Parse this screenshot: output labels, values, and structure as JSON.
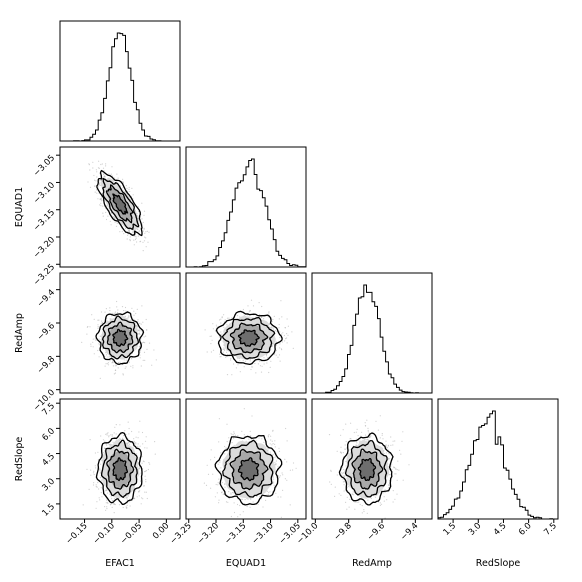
{
  "chart_data": {
    "type": "scatter",
    "title": "",
    "subtitle": "",
    "description_of_type": "corner plot",
    "parameters": [
      {
        "name": "EFAC1",
        "mean": -0.085,
        "sd": 0.02,
        "range": [
          -0.195,
          0.025
        ],
        "ticks": [
          -0.15,
          -0.1,
          -0.05,
          0.0
        ],
        "tick_labels": [
          "−0.15",
          "−0.10",
          "−0.05",
          "0.00"
        ]
      },
      {
        "name": "EQUAD1",
        "mean": -3.14,
        "sd": 0.028,
        "range": [
          -3.255,
          -3.035
        ],
        "ticks": [
          -3.25,
          -3.2,
          -3.15,
          -3.1,
          -3.05
        ],
        "tick_labels": [
          "−3.25",
          "−3.20",
          "−3.15",
          "−3.10",
          "−3.05"
        ]
      },
      {
        "name": "RedAmp",
        "mean": -9.69,
        "sd": 0.075,
        "range": [
          -10.02,
          -9.3
        ],
        "ticks": [
          -10.0,
          -9.8,
          -9.6,
          -9.4
        ],
        "tick_labels": [
          "−10.0",
          "−9.8",
          "−9.6",
          "−9.4"
        ]
      },
      {
        "name": "RedSlope",
        "mean": 3.55,
        "sd": 1.0,
        "range": [
          0.6,
          7.75
        ],
        "ticks": [
          1.5,
          3.0,
          4.5,
          6.0,
          7.5
        ],
        "tick_labels": [
          "1.5",
          "3.0",
          "4.5",
          "6.0",
          "7.5"
        ]
      }
    ],
    "correlations": [
      {
        "pair": [
          "EFAC1",
          "EQUAD1"
        ],
        "rho": -0.72
      },
      {
        "pair": [
          "EFAC1",
          "RedAmp"
        ],
        "rho": 0.0
      },
      {
        "pair": [
          "EFAC1",
          "RedSlope"
        ],
        "rho": 0.0
      },
      {
        "pair": [
          "EQUAD1",
          "RedAmp"
        ],
        "rho": 0.0
      },
      {
        "pair": [
          "EQUAD1",
          "RedSlope"
        ],
        "rho": 0.0
      },
      {
        "pair": [
          "RedAmp",
          "RedSlope"
        ],
        "rho": 0.0
      }
    ],
    "histogram_style": "step",
    "scatter_color": "#b0b0b0",
    "contour_color": "#000000",
    "grid": false,
    "legend": "none"
  }
}
